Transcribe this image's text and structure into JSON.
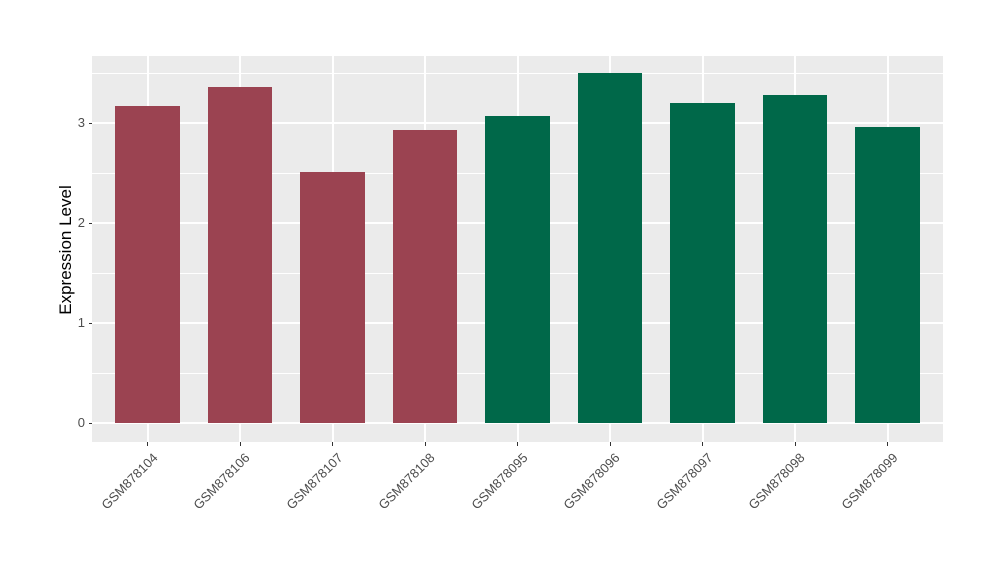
{
  "chart_data": {
    "type": "bar",
    "ylabel": "Expression Level",
    "categories": [
      "GSM878104",
      "GSM878106",
      "GSM878107",
      "GSM878108",
      "GSM878095",
      "GSM878096",
      "GSM878097",
      "GSM878098",
      "GSM878099"
    ],
    "values": [
      3.17,
      3.36,
      2.51,
      2.93,
      3.07,
      3.5,
      3.2,
      3.28,
      2.96
    ],
    "groups": [
      "red",
      "red",
      "red",
      "red",
      "green",
      "green",
      "green",
      "green",
      "green"
    ],
    "group_colors": {
      "red": "#9B4351",
      "green": "#006849"
    },
    "ytick_labels": [
      "0",
      "1",
      "2",
      "3"
    ],
    "ytick_values": [
      0,
      1,
      2,
      3
    ],
    "minor_gridlines": [
      0.5,
      1.5,
      2.5,
      3.5
    ],
    "ylim": [
      -0.19,
      3.67
    ],
    "bar_width_fraction": 0.7,
    "axis_pad": 0.6,
    "x_tick_angle": 45,
    "legend_position": "none",
    "grid": "on",
    "panel_bg": "#EBEBEB",
    "grid_color": "#FFFFFF",
    "tick_color": "#333333",
    "tick_label_color": "#4D4D4D"
  }
}
